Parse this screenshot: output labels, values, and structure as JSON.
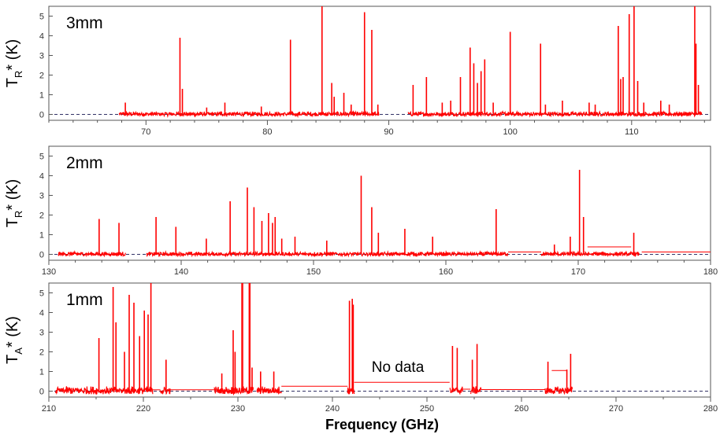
{
  "chart_data": [
    {
      "type": "line",
      "band_label": "3mm",
      "ylabel": {
        "main": "T",
        "sub": "R",
        "rest": "* (K)"
      },
      "xlim": [
        62,
        116.5
      ],
      "ylim": [
        -0.3,
        5.5
      ],
      "xticks": [
        70,
        80,
        90,
        100,
        110
      ],
      "yticks": [
        0,
        1,
        2,
        3,
        4,
        5
      ],
      "color": "#ff0000",
      "coverage": [
        [
          67.8,
          89.2
        ],
        [
          91.6,
          115.8
        ]
      ],
      "noise": 0.22,
      "lines": [
        [
          68.3,
          0.6
        ],
        [
          72.8,
          3.9
        ],
        [
          73.0,
          1.3
        ],
        [
          75.0,
          0.35
        ],
        [
          76.5,
          0.6
        ],
        [
          79.5,
          0.4
        ],
        [
          81.9,
          3.8
        ],
        [
          84.5,
          5.5
        ],
        [
          85.3,
          1.6
        ],
        [
          85.5,
          0.9
        ],
        [
          86.3,
          1.1
        ],
        [
          86.9,
          0.5
        ],
        [
          88.0,
          5.2
        ],
        [
          88.6,
          4.3
        ],
        [
          89.1,
          0.5
        ],
        [
          92.0,
          1.5
        ],
        [
          93.1,
          1.9
        ],
        [
          94.4,
          0.6
        ],
        [
          95.1,
          0.7
        ],
        [
          95.9,
          1.9
        ],
        [
          96.7,
          3.4
        ],
        [
          97.0,
          2.6
        ],
        [
          97.3,
          1.6
        ],
        [
          97.6,
          2.2
        ],
        [
          97.9,
          2.8
        ],
        [
          98.6,
          0.6
        ],
        [
          100.0,
          4.2
        ],
        [
          102.5,
          3.6
        ],
        [
          102.9,
          0.5
        ],
        [
          104.3,
          0.7
        ],
        [
          106.5,
          0.6
        ],
        [
          107.0,
          0.5
        ],
        [
          108.9,
          4.5
        ],
        [
          109.1,
          1.8
        ],
        [
          109.3,
          1.9
        ],
        [
          109.8,
          5.1
        ],
        [
          110.2,
          5.5
        ],
        [
          110.5,
          1.7
        ],
        [
          111.0,
          0.6
        ],
        [
          112.4,
          0.7
        ],
        [
          113.1,
          0.5
        ],
        [
          115.2,
          5.5
        ],
        [
          115.3,
          3.6
        ],
        [
          115.5,
          1.5
        ]
      ],
      "baseline_segments": []
    },
    {
      "type": "line",
      "band_label": "2mm",
      "ylabel": {
        "main": "T",
        "sub": "R",
        "rest": "* (K)"
      },
      "xlim": [
        130,
        180
      ],
      "ylim": [
        -0.3,
        5.5
      ],
      "xticks": [
        130,
        140,
        150,
        160,
        170,
        180
      ],
      "yticks": [
        0,
        1,
        2,
        3,
        4,
        5
      ],
      "color": "#ff0000",
      "coverage": [
        [
          130.7,
          135.8
        ],
        [
          137.4,
          164.7
        ],
        [
          167.2,
          174.6
        ]
      ],
      "noise": 0.2,
      "lines": [
        [
          133.8,
          1.8
        ],
        [
          135.3,
          1.6
        ],
        [
          138.1,
          1.9
        ],
        [
          139.6,
          1.4
        ],
        [
          141.9,
          0.8
        ],
        [
          143.7,
          2.7
        ],
        [
          145.0,
          3.4
        ],
        [
          145.5,
          2.4
        ],
        [
          146.1,
          1.7
        ],
        [
          146.6,
          2.1
        ],
        [
          146.9,
          1.6
        ],
        [
          147.1,
          1.9
        ],
        [
          147.6,
          0.8
        ],
        [
          148.6,
          0.9
        ],
        [
          151.0,
          0.7
        ],
        [
          153.6,
          4.0
        ],
        [
          154.4,
          2.4
        ],
        [
          154.9,
          1.1
        ],
        [
          156.9,
          1.3
        ],
        [
          159.0,
          0.9
        ],
        [
          163.8,
          2.3
        ],
        [
          168.2,
          0.5
        ],
        [
          169.4,
          0.9
        ],
        [
          170.1,
          4.3
        ],
        [
          170.4,
          1.9
        ],
        [
          174.2,
          1.1
        ]
      ],
      "baseline_segments": [
        [
          [
            164.7,
            0.12
          ],
          [
            167.2,
            0.12
          ]
        ],
        [
          [
            170.7,
            0.38
          ],
          [
            174.0,
            0.38
          ]
        ],
        [
          [
            174.8,
            0.12
          ],
          [
            180,
            0.12
          ]
        ]
      ]
    },
    {
      "type": "line",
      "band_label": "1mm",
      "ylabel": {
        "main": "T",
        "sub": "A",
        "rest": "* (K)"
      },
      "xlim": [
        210,
        280
      ],
      "ylim": [
        -0.3,
        5.5
      ],
      "xticks": [
        210,
        220,
        230,
        240,
        250,
        260,
        270,
        280
      ],
      "yticks": [
        0,
        1,
        2,
        3,
        4,
        5
      ],
      "color": "#ff0000",
      "annotation": "No data",
      "coverage": [
        [
          210.7,
          221.0
        ],
        [
          221.8,
          222.8
        ],
        [
          227.5,
          231.6
        ],
        [
          232.0,
          234.6
        ],
        [
          241.6,
          242.3
        ],
        [
          252.4,
          253.8
        ],
        [
          254.6,
          255.7
        ],
        [
          262.5,
          265.4
        ]
      ],
      "noise": 0.38,
      "lines": [
        [
          215.3,
          2.7
        ],
        [
          216.8,
          5.3
        ],
        [
          217.1,
          3.5
        ],
        [
          218.0,
          2.0
        ],
        [
          218.5,
          4.9
        ],
        [
          219.0,
          4.5
        ],
        [
          219.6,
          2.8
        ],
        [
          220.1,
          4.1
        ],
        [
          220.5,
          3.9
        ],
        [
          220.8,
          5.5
        ],
        [
          222.4,
          1.6
        ],
        [
          228.3,
          0.9
        ],
        [
          229.5,
          3.1
        ],
        [
          229.7,
          2.0
        ],
        [
          230.5,
          5.5
        ],
        [
          231.2,
          5.5
        ],
        [
          231.5,
          1.2
        ],
        [
          232.4,
          1.0
        ],
        [
          233.8,
          1.0
        ],
        [
          241.8,
          4.6
        ],
        [
          242.1,
          4.7
        ],
        [
          242.2,
          4.4
        ],
        [
          252.7,
          2.3
        ],
        [
          253.2,
          2.2
        ],
        [
          254.8,
          1.6
        ],
        [
          255.3,
          2.4
        ],
        [
          262.8,
          1.5
        ],
        [
          264.8,
          1.1
        ],
        [
          265.2,
          1.9
        ]
      ],
      "baseline_segments": [
        [
          [
            221.0,
            0.07
          ],
          [
            221.8,
            0.07
          ]
        ],
        [
          [
            222.8,
            0.07
          ],
          [
            227.5,
            0.07
          ]
        ],
        [
          [
            230.4,
            0.07
          ],
          [
            230.4,
            5.5
          ]
        ],
        [
          [
            231.3,
            5.5
          ],
          [
            231.3,
            0.07
          ]
        ],
        [
          [
            234.6,
            0.25
          ],
          [
            241.6,
            0.25
          ]
        ],
        [
          [
            242.3,
            0.45
          ],
          [
            252.4,
            0.45
          ]
        ],
        [
          [
            253.8,
            0.1
          ],
          [
            254.6,
            0.1
          ]
        ],
        [
          [
            255.7,
            0.08
          ],
          [
            262.5,
            0.08
          ]
        ],
        [
          [
            263.2,
            1.05
          ],
          [
            264.8,
            1.05
          ]
        ]
      ]
    }
  ],
  "xlabel": "Frequency (GHz)"
}
